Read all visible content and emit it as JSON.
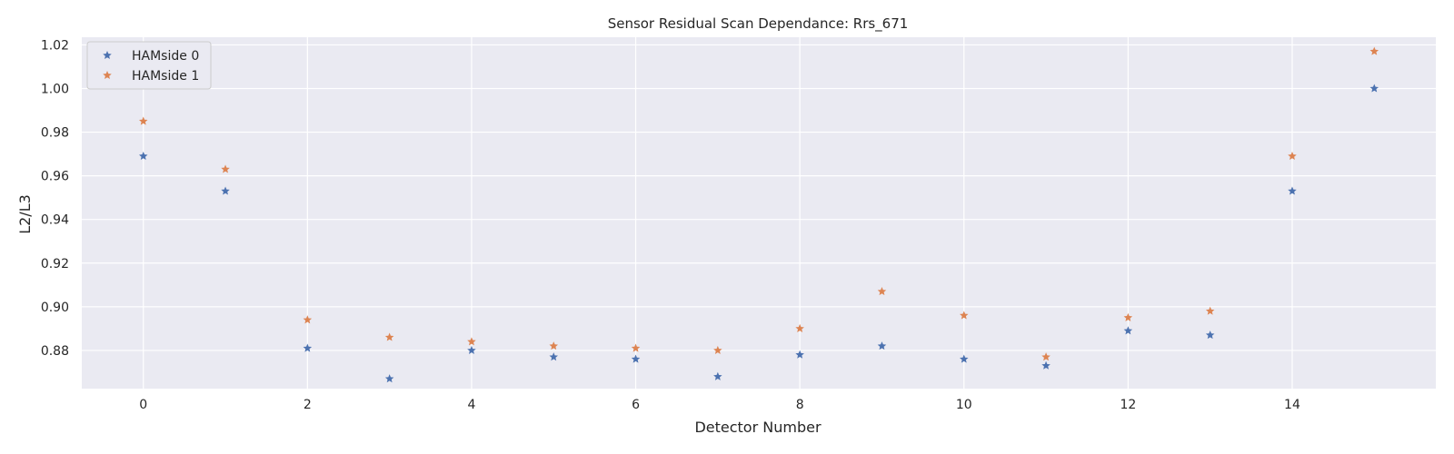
{
  "chart_data": {
    "type": "scatter",
    "title": "Sensor Residual Scan Dependance: Rrs_671",
    "xlabel": "Detector Number",
    "ylabel": "L2/L3",
    "xlim": [
      -0.75,
      15.75
    ],
    "ylim": [
      0.8625,
      1.0235
    ],
    "xticks": [
      0,
      2,
      4,
      6,
      8,
      10,
      12,
      14
    ],
    "xtick_labels": [
      "0",
      "2",
      "4",
      "6",
      "8",
      "10",
      "12",
      "14"
    ],
    "yticks": [
      0.88,
      0.9,
      0.92,
      0.94,
      0.96,
      0.98,
      1.0,
      1.02
    ],
    "ytick_labels": [
      "0.88",
      "0.90",
      "0.92",
      "0.94",
      "0.96",
      "0.98",
      "1.00",
      "1.02"
    ],
    "grid": true,
    "legend_position": "top-left",
    "x": [
      0,
      1,
      2,
      3,
      4,
      5,
      6,
      7,
      8,
      9,
      10,
      11,
      12,
      13,
      14,
      15
    ],
    "series": [
      {
        "name": "HAMside 0",
        "color": "#4c72b0",
        "marker": "star",
        "values": [
          0.969,
          0.953,
          0.881,
          0.867,
          0.88,
          0.877,
          0.876,
          0.868,
          0.878,
          0.882,
          0.876,
          0.873,
          0.889,
          0.887,
          0.953,
          1.0
        ]
      },
      {
        "name": "HAMside 1",
        "color": "#dd8452",
        "marker": "star",
        "values": [
          0.985,
          0.963,
          0.894,
          0.886,
          0.884,
          0.882,
          0.881,
          0.88,
          0.89,
          0.907,
          0.896,
          0.877,
          0.895,
          0.898,
          0.969,
          1.017
        ]
      }
    ],
    "style": {
      "plot_background": "#eaeaf2",
      "grid_color": "#ffffff",
      "text_color": "#262626"
    }
  }
}
